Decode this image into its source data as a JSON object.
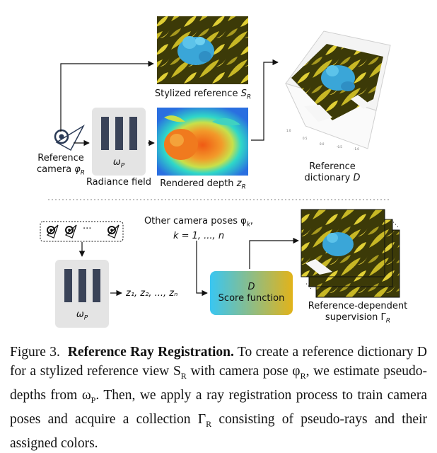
{
  "top": {
    "stylized_ref": {
      "text": "Stylized reference ",
      "sym": "S",
      "sub": "R"
    },
    "ref_camera": {
      "line1": "Reference",
      "line2": "camera ",
      "sym": "φ",
      "sub": "R"
    },
    "radiance_field": {
      "label": "Radiance field",
      "omega_sym": "ω",
      "omega_sub": "P"
    },
    "rendered_depth": {
      "text": "Rendered depth ",
      "sym": "z",
      "sub": "R"
    },
    "ref_dictionary": {
      "line1": "Reference",
      "line2": "dictionary ",
      "sym": "D"
    },
    "plot_ticks": [
      "1.0",
      "0.5",
      "0.0",
      "-0.5",
      "-1.0",
      "0.5",
      "0.0",
      "-0.5",
      "-1.0"
    ]
  },
  "bottom": {
    "other_poses": {
      "line1": "Other camera poses φ",
      "sub1": "k",
      "line1_end": ",",
      "line2": "k = 1, ..., n"
    },
    "dots": "···",
    "omega": {
      "sym": "ω",
      "sub": "P"
    },
    "depths": "z₁, z₂, ..., zₙ",
    "score": {
      "sym": "D",
      "label": "Score function"
    },
    "supervision": {
      "line1": "Reference-dependent",
      "line2": "supervision Γ",
      "sub": "R"
    }
  },
  "caption": {
    "fig": "Figure 3.",
    "title": "Reference Ray Registration.",
    "body": " To create a reference dictionary D for a stylized reference view S",
    "sub1": "R",
    "body2": " with camera pose φ",
    "sub2": "R",
    "body3": ", we estimate pseudo-depths from ω",
    "sub3": "P",
    "body4": ". Then, we apply a ray registration process to train camera poses and acquire a collection Γ",
    "sub4": "R",
    "body5": " consisting of pseudo-rays and their assigned colors."
  },
  "colors": {
    "stylized_bg": "#6b6a12",
    "flower_blue": "#3aa6d8",
    "depth_blue": "#2a7fe0",
    "depth_orange": "#f07a1e",
    "score_grad_start": "#39c6f2",
    "score_grad_end": "#e2b31a",
    "field_panel": "#e4e4e4",
    "bar": "#3a4358"
  }
}
